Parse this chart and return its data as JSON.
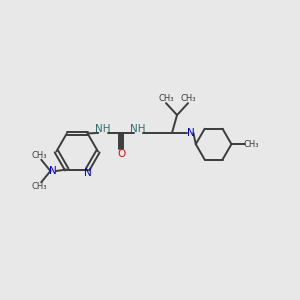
{
  "bg_color": "#e8e8e8",
  "bond_color": "#3c3c3c",
  "N_color": "#0000dd",
  "O_color": "#dd1111",
  "NH_color": "#2a7070",
  "fig_w": 3.0,
  "fig_h": 3.0,
  "dpi": 100,
  "lw": 1.4,
  "fs": 7.5,
  "fsg": 6.0,
  "xlim": [
    0,
    10
  ],
  "ylim": [
    2,
    9
  ]
}
